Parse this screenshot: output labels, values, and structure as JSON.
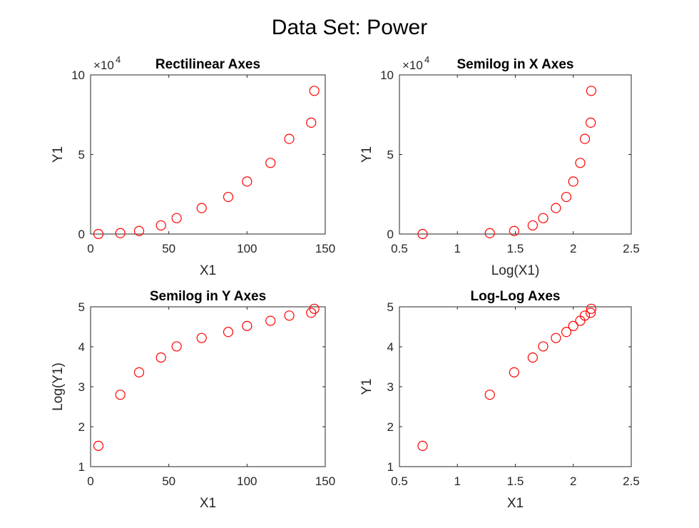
{
  "figure_title": "Data Set: Power",
  "chart_data": [
    {
      "type": "scatter",
      "title": "Rectilinear Axes",
      "xlabel": "X1",
      "ylabel": "Y1",
      "xlim": [
        0,
        150
      ],
      "ylim": [
        0,
        100000
      ],
      "xticks": [
        0,
        50,
        100,
        150
      ],
      "yticks": [
        0,
        50000,
        100000
      ],
      "xtick_labels": [
        "0",
        "50",
        "100",
        "150"
      ],
      "ytick_labels": [
        "0",
        "5",
        "10"
      ],
      "y_multiplier_label": "×10",
      "y_multiplier_exp": "4",
      "marker": "circle",
      "color": "#ff0000",
      "x": [
        5,
        19,
        31,
        45,
        55,
        71,
        88,
        100,
        115,
        127,
        141,
        143
      ],
      "y": [
        0,
        550,
        1900,
        5400,
        10000,
        16300,
        23300,
        33000,
        44700,
        59800,
        70000,
        90000
      ]
    },
    {
      "type": "scatter",
      "title": "Semilog in X Axes",
      "xlabel": "Log(X1)",
      "ylabel": "Y1",
      "xlim": [
        0.5,
        2.5
      ],
      "ylim": [
        0,
        100000
      ],
      "xticks": [
        0.5,
        1,
        1.5,
        2,
        2.5
      ],
      "yticks": [
        0,
        50000,
        100000
      ],
      "xtick_labels": [
        "0.5",
        "1",
        "1.5",
        "2",
        "2.5"
      ],
      "ytick_labels": [
        "0",
        "5",
        "10"
      ],
      "y_multiplier_label": "×10",
      "y_multiplier_exp": "4",
      "marker": "circle",
      "color": "#ff0000",
      "x": [
        0.7,
        1.28,
        1.49,
        1.65,
        1.74,
        1.85,
        1.94,
        2.0,
        2.06,
        2.1,
        2.15,
        2.155
      ],
      "y": [
        0,
        550,
        1900,
        5400,
        10000,
        16300,
        23300,
        33000,
        44700,
        59800,
        70000,
        90000
      ]
    },
    {
      "type": "scatter",
      "title": "Semilog in Y Axes",
      "xlabel": "X1",
      "ylabel": "Log(Y1)",
      "xlim": [
        0,
        150
      ],
      "ylim": [
        1,
        5
      ],
      "xticks": [
        0,
        50,
        100,
        150
      ],
      "yticks": [
        1,
        2,
        3,
        4,
        5
      ],
      "xtick_labels": [
        "0",
        "50",
        "100",
        "150"
      ],
      "ytick_labels": [
        "1",
        "2",
        "3",
        "4",
        "5"
      ],
      "marker": "circle",
      "color": "#ff0000",
      "x": [
        5,
        19,
        31,
        45,
        55,
        71,
        88,
        100,
        115,
        127,
        141,
        143
      ],
      "y": [
        1.52,
        2.8,
        3.36,
        3.73,
        4.01,
        4.22,
        4.37,
        4.52,
        4.65,
        4.78,
        4.85,
        4.95
      ]
    },
    {
      "type": "scatter",
      "title": "Log-Log Axes",
      "xlabel": "X1",
      "ylabel": "Y1",
      "xlim": [
        0.5,
        2.5
      ],
      "ylim": [
        1,
        5
      ],
      "xticks": [
        0.5,
        1,
        1.5,
        2,
        2.5
      ],
      "yticks": [
        1,
        2,
        3,
        4,
        5
      ],
      "xtick_labels": [
        "0.5",
        "1",
        "1.5",
        "2",
        "2.5"
      ],
      "ytick_labels": [
        "1",
        "2",
        "3",
        "4",
        "5"
      ],
      "marker": "circle",
      "color": "#ff0000",
      "x": [
        0.7,
        1.28,
        1.49,
        1.65,
        1.74,
        1.85,
        1.94,
        2.0,
        2.06,
        2.1,
        2.15,
        2.155
      ],
      "y": [
        1.52,
        2.8,
        3.36,
        3.73,
        4.01,
        4.22,
        4.37,
        4.52,
        4.65,
        4.78,
        4.85,
        4.95
      ]
    }
  ]
}
